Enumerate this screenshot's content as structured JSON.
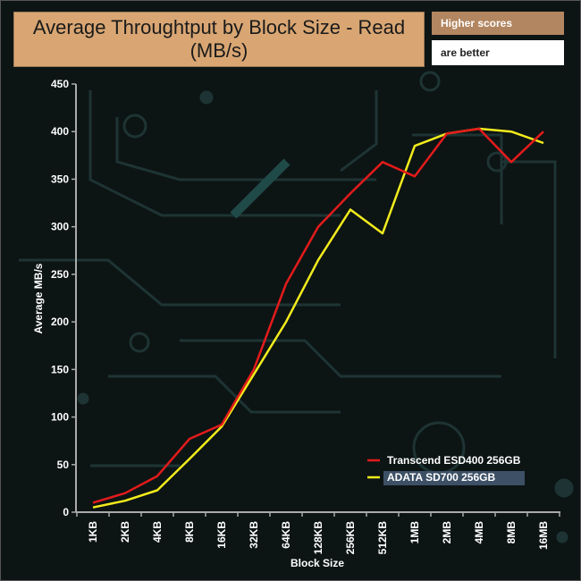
{
  "header": {
    "title": "Average Throughtput by Block Size - Read (MB/s)",
    "note_line1": "Higher scores",
    "note_line2": "are better"
  },
  "colors": {
    "series1": "#e31b1b",
    "series2": "#f2ec1c",
    "title_bg": "#d9a673",
    "legend_highlight": "#3d5066"
  },
  "chart_data": {
    "type": "line",
    "title": "Average Throughtput by Block Size - Read (MB/s)",
    "xlabel": "Block Size",
    "ylabel": "Average MB/s",
    "categories": [
      "1KB",
      "2KB",
      "4KB",
      "8KB",
      "16KB",
      "32KB",
      "64KB",
      "128KB",
      "256KB",
      "512KB",
      "1MB",
      "2MB",
      "4MB",
      "8MB",
      "16MB"
    ],
    "ylim": [
      0,
      450
    ],
    "yticks": [
      0,
      50,
      100,
      150,
      200,
      250,
      300,
      350,
      400,
      450
    ],
    "grid": false,
    "legend_position": "bottom-right",
    "series": [
      {
        "name": "Transcend ESD400 256GB",
        "values": [
          10,
          20,
          38,
          77,
          92,
          150,
          240,
          300,
          335,
          368,
          353,
          398,
          403,
          368,
          400
        ]
      },
      {
        "name": "ADATA SD700 256GB",
        "values": [
          5,
          12,
          23,
          56,
          90,
          145,
          200,
          265,
          318,
          293,
          385,
          398,
          403,
          400,
          388
        ]
      }
    ]
  }
}
